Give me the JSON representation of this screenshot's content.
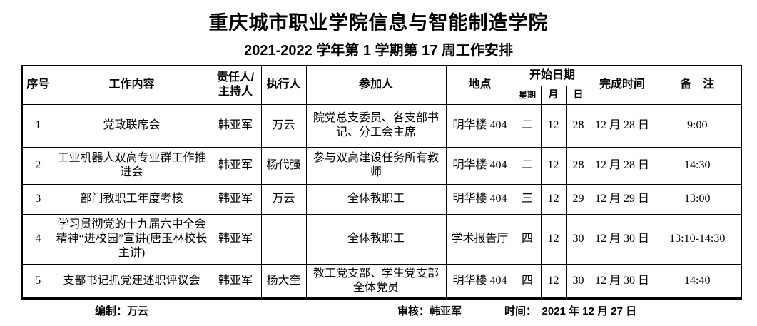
{
  "title": "重庆城市职业学院信息与智能制造学院",
  "subtitle": "2021-2022 学年第 1 学期第 17 周工作安排",
  "table": {
    "headers": {
      "seq": "序号",
      "content": "工作内容",
      "responsible": "责任人/主持人",
      "executor": "执行人",
      "participants": "参加人",
      "location": "地点",
      "start_date": "开始日期",
      "weekday": "星期",
      "month": "月",
      "day": "日",
      "finish_time": "完成时间",
      "remarks": "备　注"
    },
    "rows": [
      {
        "seq": "1",
        "content": "党政联席会",
        "responsible": "韩亚军",
        "executor": "万云",
        "participants": "院党总支委员、各支部书记、分工会主席",
        "location": "明华楼 404",
        "weekday": "二",
        "month": "12",
        "day": "28",
        "finish_time": "12 月 28 日",
        "remarks": "9:00"
      },
      {
        "seq": "2",
        "content": "工业机器人双高专业群工作推进会",
        "responsible": "韩亚军",
        "executor": "杨代强",
        "participants": "参与双高建设任务所有教师",
        "location": "明华楼 404",
        "weekday": "二",
        "month": "12",
        "day": "28",
        "finish_time": "12 月 28 日",
        "remarks": "14:30"
      },
      {
        "seq": "3",
        "content": "部门教职工年度考核",
        "responsible": "韩亚军",
        "executor": "万云",
        "participants": "全体教职工",
        "location": "明华楼 404",
        "weekday": "三",
        "month": "12",
        "day": "29",
        "finish_time": "12 月 29 日",
        "remarks": "13:00"
      },
      {
        "seq": "4",
        "content": "学习贯彻党的十九届六中全会精神“进校园”宣讲(唐玉林校长主讲)",
        "responsible": "韩亚军",
        "executor": "",
        "participants": "全体教职工",
        "location": "学术报告厅",
        "weekday": "四",
        "month": "12",
        "day": "30",
        "finish_time": "12 月 30 日",
        "remarks": "13:10-14:30"
      },
      {
        "seq": "5",
        "content": "支部书记抓党建述职评议会",
        "responsible": "韩亚军",
        "executor": "杨大奎",
        "participants": "教工党支部、学生党支部全体党员",
        "location": "明华楼 404",
        "weekday": "四",
        "month": "12",
        "day": "30",
        "finish_time": "12 月 30 日",
        "remarks": "14:40"
      }
    ]
  },
  "footer": {
    "prepared_label": "编制：",
    "prepared_value": "万云",
    "reviewed_label": "审核：",
    "reviewed_value": "韩亚军",
    "time_label": "时间：",
    "time_value": "2021 年 12 月 27 日"
  }
}
